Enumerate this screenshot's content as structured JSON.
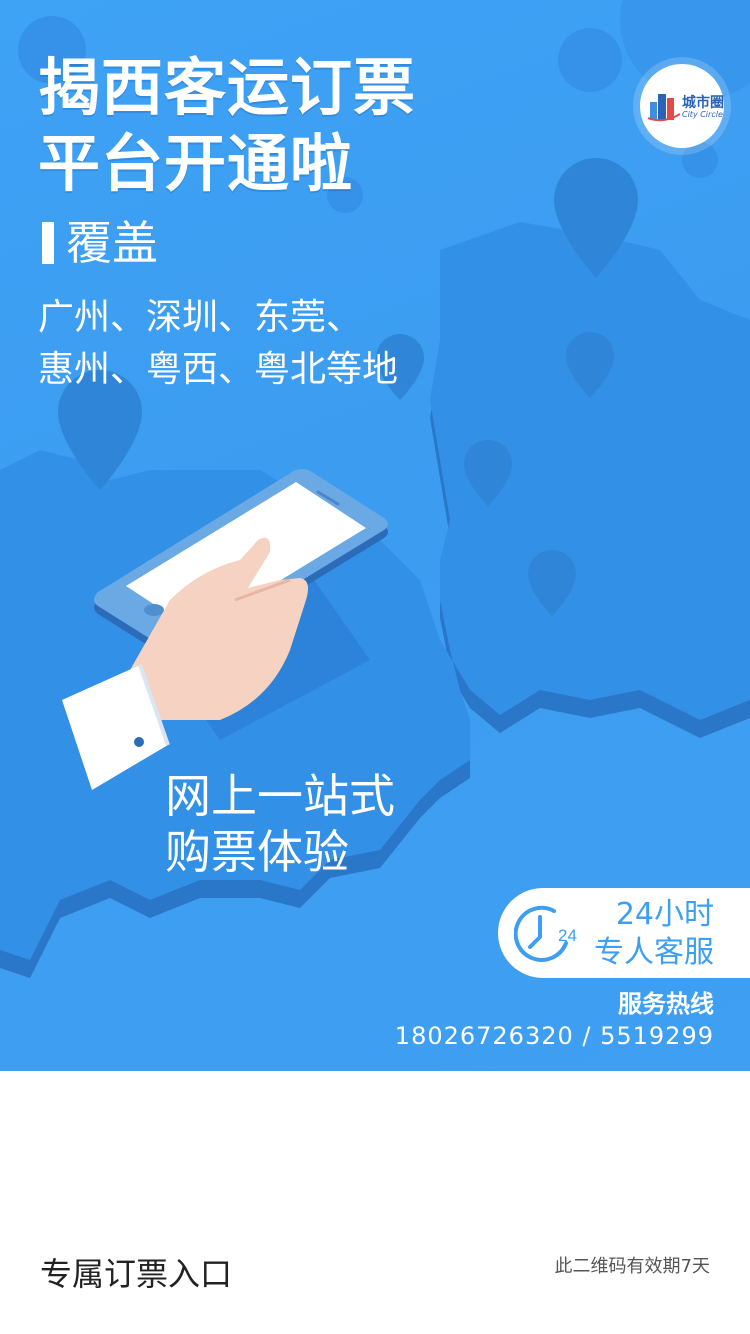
{
  "poster": {
    "title_lines": [
      "揭西客运订票",
      "平台开通啦"
    ],
    "coverage_label": "覆盖",
    "cities_lines": [
      "广州、深圳、东莞、",
      "惠州、粤西、粤北等地"
    ],
    "slogan_lines": [
      "网上一站式",
      "购票体验"
    ],
    "service": {
      "clock_number": "24",
      "line1": "24小时",
      "line2": "专人客服"
    },
    "hotline": {
      "title": "服务热线",
      "numbers": "18026726320  / 5519299"
    },
    "logo": {
      "cn": "城市圈",
      "en": "City Circle"
    },
    "colors": {
      "background": "#3ea2f5",
      "map": "#3290e6",
      "map_shadow": "#2a76c8",
      "accent_text": "#3d9ff1"
    }
  },
  "footer": {
    "left_label": "专属订票入口",
    "right_note": "此二维码有效期7天"
  }
}
